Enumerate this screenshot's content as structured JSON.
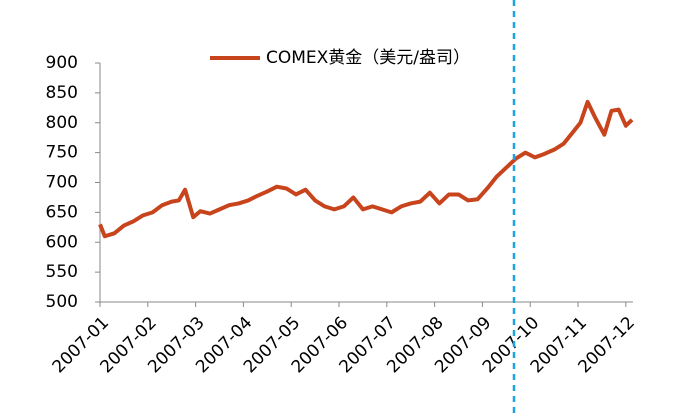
{
  "chart_data": {
    "type": "line",
    "x": [
      0,
      0.1,
      0.3,
      0.5,
      0.7,
      0.9,
      1.1,
      1.3,
      1.5,
      1.65,
      1.78,
      1.95,
      2.1,
      2.3,
      2.5,
      2.7,
      2.9,
      3.1,
      3.3,
      3.5,
      3.7,
      3.9,
      4.1,
      4.3,
      4.5,
      4.7,
      4.9,
      5.1,
      5.3,
      5.5,
      5.7,
      5.9,
      6.1,
      6.3,
      6.5,
      6.7,
      6.9,
      7.1,
      7.3,
      7.5,
      7.7,
      7.9,
      8.1,
      8.3,
      8.5,
      8.7,
      8.9,
      9.1,
      9.3,
      9.5,
      9.7,
      9.9,
      10.05,
      10.2,
      10.35,
      10.55,
      10.7,
      10.85,
      11.0,
      11.13
    ],
    "series": [
      {
        "name": "COMEX黄金（美元/盎司）",
        "color": "#c8441c",
        "values": [
          630,
          610,
          615,
          628,
          635,
          645,
          650,
          662,
          668,
          670,
          688,
          642,
          652,
          648,
          655,
          662,
          665,
          670,
          678,
          685,
          693,
          690,
          680,
          688,
          670,
          660,
          655,
          660,
          675,
          655,
          660,
          655,
          650,
          660,
          665,
          668,
          683,
          665,
          680,
          680,
          670,
          672,
          690,
          710,
          725,
          740,
          750,
          742,
          748,
          755,
          765,
          785,
          800,
          835,
          810,
          780,
          820,
          822,
          795,
          805
        ]
      }
    ],
    "xlim": [
      0,
      11.15
    ],
    "xticks": [
      {
        "value": 0,
        "label": "2007-01"
      },
      {
        "value": 1,
        "label": "2007-02"
      },
      {
        "value": 2,
        "label": "2007-03"
      },
      {
        "value": 3,
        "label": "2007-04"
      },
      {
        "value": 4,
        "label": "2007-05"
      },
      {
        "value": 5,
        "label": "2007-06"
      },
      {
        "value": 6,
        "label": "2007-07"
      },
      {
        "value": 7,
        "label": "2007-08"
      },
      {
        "value": 8,
        "label": "2007-09"
      },
      {
        "value": 9,
        "label": "2007-10"
      },
      {
        "value": 10,
        "label": "2007-11"
      },
      {
        "value": 11,
        "label": "2007-12"
      }
    ],
    "ylim": [
      500,
      900
    ],
    "yticks": [
      500,
      550,
      600,
      650,
      700,
      750,
      800,
      850,
      900
    ],
    "legend": "top"
  }
}
